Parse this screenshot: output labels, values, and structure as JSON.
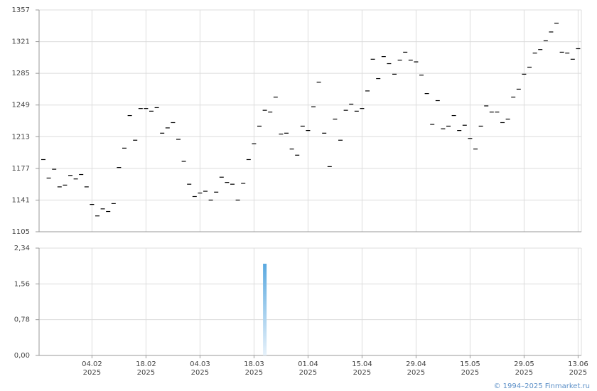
{
  "chart_data": {
    "type": "dash",
    "categories": [
      null,
      null,
      null,
      null,
      null,
      null,
      null,
      null,
      null,
      "04.02 2025",
      null,
      null,
      null,
      null,
      null,
      null,
      null,
      null,
      null,
      "18.02 2025",
      null,
      null,
      null,
      null,
      null,
      null,
      null,
      null,
      null,
      "04.03 2025",
      null,
      null,
      null,
      null,
      null,
      null,
      null,
      null,
      null,
      "18.03 2025",
      null,
      null,
      null,
      null,
      null,
      null,
      null,
      null,
      null,
      "01.04 2025",
      null,
      null,
      null,
      null,
      null,
      null,
      null,
      null,
      null,
      "15.04 2025",
      null,
      null,
      null,
      null,
      null,
      null,
      null,
      null,
      null,
      "29.04 2025",
      null,
      null,
      null,
      null,
      null,
      null,
      null,
      null,
      null,
      "15.05 2025",
      null,
      null,
      null,
      null,
      null,
      null,
      null,
      null,
      null,
      "29.05 2025",
      null,
      null,
      null,
      null,
      null,
      null,
      null,
      null,
      null,
      "13.06 2025"
    ],
    "series": [
      {
        "color": "#000000",
        "values": [
          1187,
          1166,
          1176,
          1156,
          1158,
          1169,
          1165,
          1170,
          1156,
          1136,
          1123,
          1131,
          1128,
          1137,
          1178,
          1200,
          1237,
          1209,
          1245,
          1245,
          1242,
          1246,
          1217,
          1223,
          1229,
          1210,
          1185,
          1159,
          1145,
          1149,
          1151,
          1141,
          1150,
          1167,
          1161,
          1159,
          1141,
          1160,
          1187,
          1205,
          1225,
          1243,
          1241,
          1258,
          1216,
          1217,
          1199,
          1192,
          1225,
          1220,
          1247,
          1275,
          1217,
          1179,
          1233,
          1209,
          1243,
          1250,
          1242,
          1245,
          1265,
          1301,
          1279,
          1304,
          1296,
          1284,
          1300,
          1309,
          1300,
          1298,
          1283,
          1262,
          1227,
          1254,
          1222,
          1225,
          1237,
          1220,
          1226,
          1211,
          1199,
          1225,
          1248,
          1241,
          1241,
          1229,
          1233,
          1258,
          1267,
          1284,
          1292,
          1308,
          1312,
          1322,
          1332,
          1342,
          1309,
          1308,
          1301,
          1313
        ]
      },
      {
        "type": "bar",
        "axis": "y2",
        "color": "#5aa9e0",
        "values": [
          null,
          null,
          null,
          null,
          null,
          null,
          null,
          null,
          null,
          null,
          null,
          null,
          null,
          null,
          null,
          null,
          null,
          null,
          null,
          null,
          null,
          null,
          null,
          null,
          null,
          null,
          null,
          null,
          null,
          null,
          null,
          null,
          null,
          null,
          null,
          null,
          null,
          null,
          null,
          null,
          null,
          2.0,
          null,
          null,
          null,
          null,
          null,
          null,
          null,
          null,
          null,
          null,
          null,
          null,
          null,
          null,
          null,
          null,
          null,
          null,
          null,
          null,
          null,
          null,
          null,
          null,
          null,
          null,
          null,
          null,
          null,
          null,
          null,
          null,
          null,
          null,
          null,
          null,
          null,
          null,
          null,
          null,
          null,
          null,
          null,
          null,
          null,
          null,
          null,
          null,
          null,
          null,
          null,
          null,
          null,
          null,
          null,
          null,
          null,
          null
        ]
      }
    ],
    "ylim": [
      1105,
      1357
    ],
    "yticks": [
      1105,
      1141,
      1177,
      1213,
      1249,
      1285,
      1321,
      1357
    ],
    "y2lim": [
      0,
      2.34
    ],
    "y2ticks": [
      {
        "value": 0,
        "label": "0,00"
      },
      {
        "value": 0.78,
        "label": "0,78"
      },
      {
        "value": 1.56,
        "label": "1,56"
      },
      {
        "value": 2.34,
        "label": "2,34"
      }
    ],
    "grid": true,
    "footer": "© 1994–2025 Finmarket.ru"
  }
}
